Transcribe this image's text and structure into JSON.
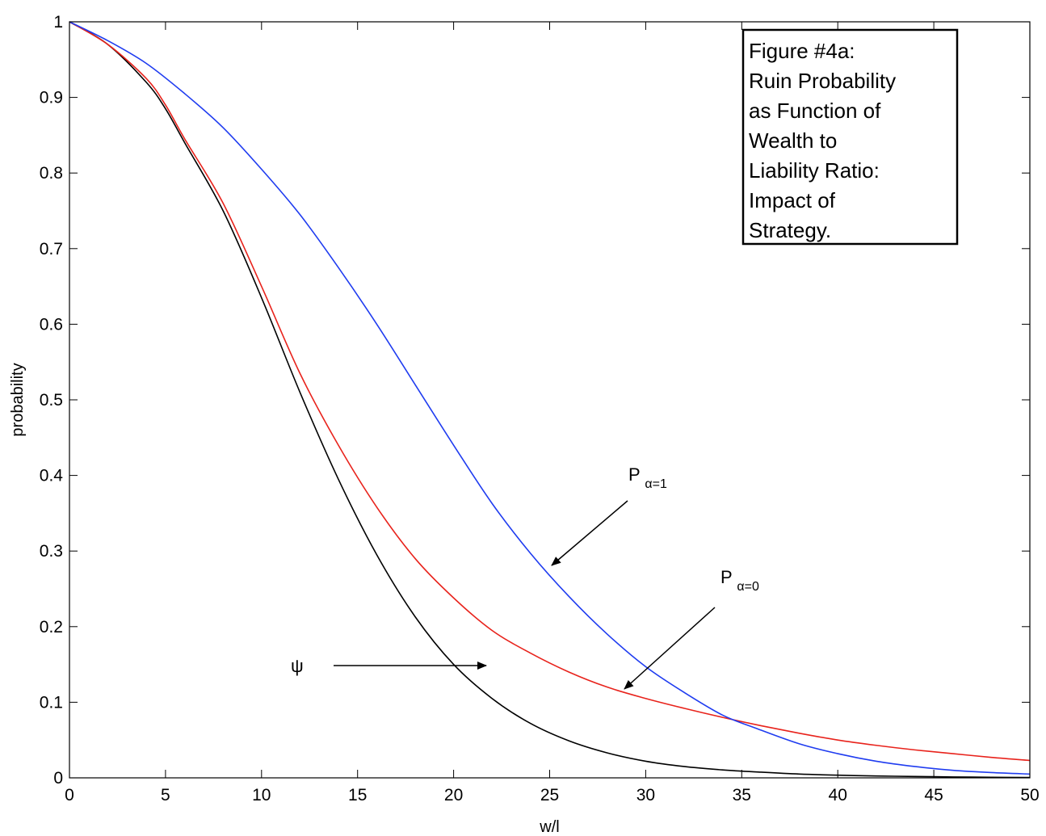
{
  "chart_data": {
    "type": "line",
    "xlabel": "w/l",
    "ylabel": "probability",
    "xlim": [
      0,
      50
    ],
    "ylim": [
      0,
      1
    ],
    "xticks": [
      0,
      5,
      10,
      15,
      20,
      25,
      30,
      35,
      40,
      45,
      50
    ],
    "yticks": [
      0,
      0.1,
      0.2,
      0.3,
      0.4,
      0.5,
      0.6,
      0.7,
      0.8,
      0.9,
      1
    ],
    "xtick_labels": [
      "0",
      "5",
      "10",
      "15",
      "20",
      "25",
      "30",
      "35",
      "40",
      "45",
      "50"
    ],
    "ytick_labels": [
      "0",
      "0.1",
      "0.2",
      "0.3",
      "0.4",
      "0.5",
      "0.6",
      "0.7",
      "0.8",
      "0.9",
      "1"
    ],
    "grid": false,
    "series": [
      {
        "name": "ψ",
        "color": "#000000",
        "x": [
          0,
          2,
          4,
          5,
          6,
          8,
          10,
          12,
          14,
          16,
          18,
          20,
          22,
          24,
          26,
          28,
          30,
          32,
          34,
          36,
          38,
          40,
          42,
          44,
          46,
          48,
          50
        ],
        "y": [
          1.0,
          0.97,
          0.92,
          0.885,
          0.84,
          0.75,
          0.635,
          0.51,
          0.395,
          0.295,
          0.213,
          0.15,
          0.105,
          0.072,
          0.049,
          0.033,
          0.022,
          0.015,
          0.0105,
          0.0075,
          0.005,
          0.0035,
          0.0025,
          0.0018,
          0.0012,
          0.0008,
          0.0005
        ]
      },
      {
        "name": "α=0",
        "color": "#e8231c",
        "x": [
          0,
          2,
          4,
          5,
          6,
          8,
          10,
          12,
          14,
          16,
          18,
          20,
          22,
          24,
          26,
          28,
          30,
          32,
          34,
          36,
          38,
          40,
          42,
          44,
          46,
          48,
          50
        ],
        "y": [
          1.0,
          0.97,
          0.925,
          0.89,
          0.845,
          0.76,
          0.65,
          0.535,
          0.44,
          0.358,
          0.29,
          0.238,
          0.195,
          0.165,
          0.14,
          0.12,
          0.105,
          0.092,
          0.08,
          0.069,
          0.059,
          0.05,
          0.043,
          0.037,
          0.032,
          0.027,
          0.023
        ]
      },
      {
        "name": "α=1",
        "color": "#1f3cf0",
        "x": [
          0,
          2,
          4,
          6,
          8,
          10,
          12,
          14,
          16,
          18,
          20,
          22,
          24,
          26,
          28,
          30,
          32,
          34,
          35.7,
          38,
          40,
          42,
          44,
          46,
          48,
          50
        ],
        "y": [
          1.0,
          0.975,
          0.945,
          0.905,
          0.86,
          0.805,
          0.745,
          0.675,
          0.6,
          0.52,
          0.44,
          0.363,
          0.297,
          0.24,
          0.19,
          0.147,
          0.113,
          0.083,
          0.066,
          0.045,
          0.032,
          0.022,
          0.015,
          0.01,
          0.007,
          0.005
        ]
      }
    ],
    "annotations": [
      {
        "main": "P",
        "sub": "α=1"
      },
      {
        "main": "P",
        "sub": "α=0"
      },
      {
        "main": "ψ",
        "sub": ""
      }
    ],
    "text_box": {
      "lines": [
        "Figure #4a:",
        "Ruin Probability",
        "as Function of",
        "Wealth to",
        "Liability Ratio:",
        "Impact of",
        "Strategy."
      ]
    }
  }
}
